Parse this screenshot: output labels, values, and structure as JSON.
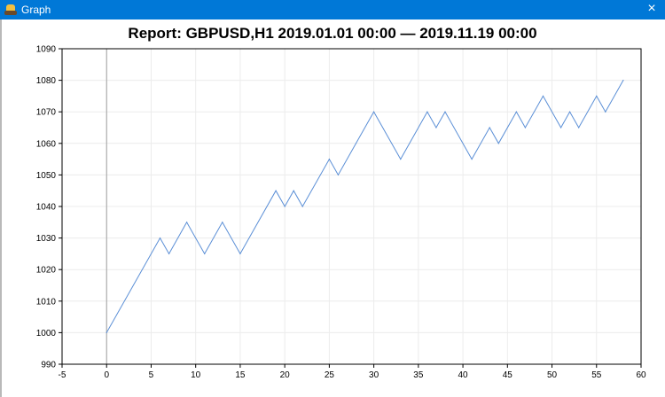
{
  "window": {
    "title": "Graph",
    "close_glyph": "×",
    "icon": "app-icon",
    "titlebar_color": "#0078d7"
  },
  "chart_data": {
    "type": "line",
    "title": "Report: GBPUSD,H1 2019.01.01 00:00 — 2019.11.19 00:00",
    "xlabel": "",
    "ylabel": "",
    "xlim": [
      -5,
      60
    ],
    "ylim": [
      990,
      1090
    ],
    "x_ticks": [
      -5,
      0,
      5,
      10,
      15,
      20,
      25,
      30,
      35,
      40,
      45,
      50,
      55,
      60
    ],
    "y_ticks": [
      990,
      1000,
      1010,
      1020,
      1030,
      1040,
      1050,
      1060,
      1070,
      1080,
      1090
    ],
    "grid": true,
    "legend": "none",
    "zero_line_color": "#a0a0a0",
    "line_color": "#5b8fd6",
    "series": [
      {
        "x": [
          0,
          6,
          7,
          9,
          11,
          13,
          15,
          19,
          20,
          21,
          22,
          25,
          26,
          28,
          30,
          33,
          36,
          37,
          38,
          41,
          43,
          44,
          46,
          47,
          49,
          51,
          52,
          53,
          55,
          56,
          58
        ],
        "y": [
          1000,
          1030,
          1025,
          1035,
          1025,
          1035,
          1025,
          1045,
          1040,
          1045,
          1040,
          1055,
          1050,
          1060,
          1070,
          1055,
          1070,
          1065,
          1070,
          1055,
          1065,
          1060,
          1070,
          1065,
          1075,
          1065,
          1070,
          1065,
          1075,
          1070,
          1080
        ]
      }
    ]
  }
}
